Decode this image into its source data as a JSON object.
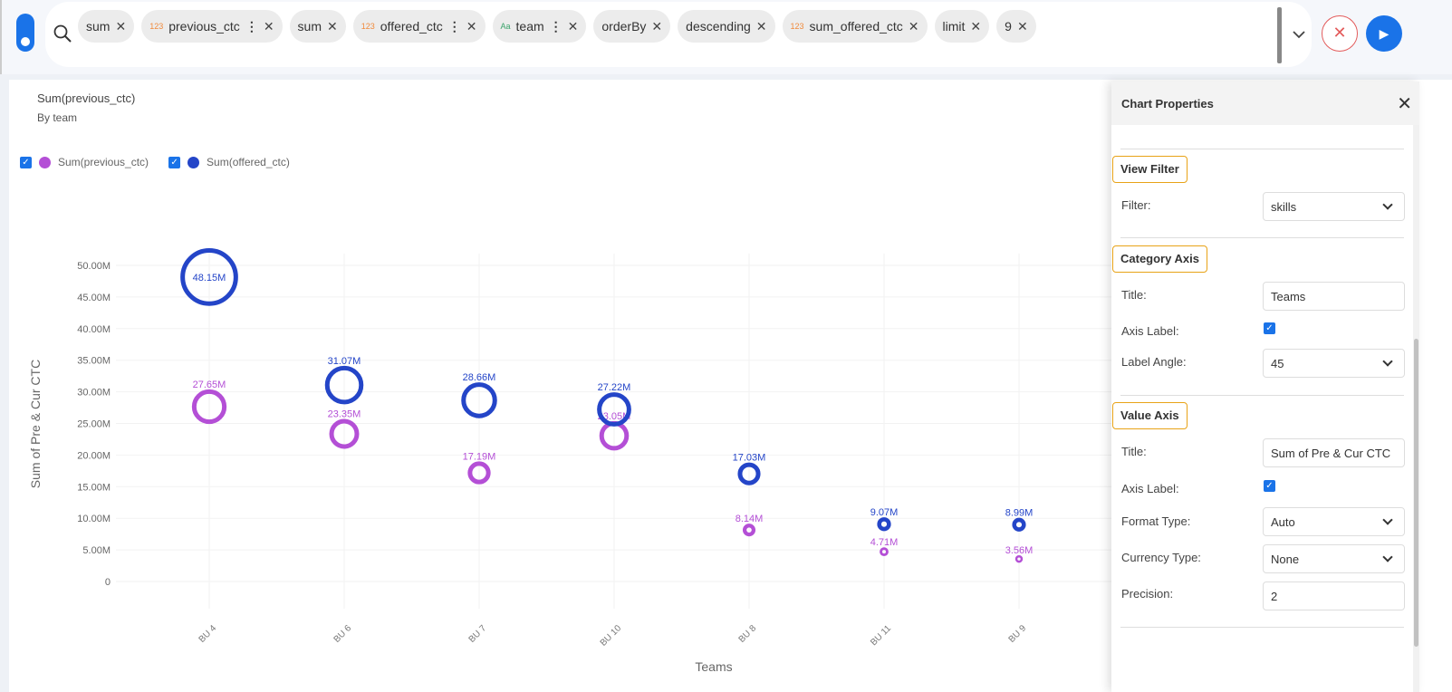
{
  "query": {
    "chips": [
      {
        "label": "sum"
      },
      {
        "type": "123",
        "label": "previous_ctc",
        "menu": true
      },
      {
        "label": "sum"
      },
      {
        "type": "123",
        "label": "offered_ctc",
        "menu": true
      },
      {
        "type": "Aa",
        "label": "team",
        "menu": true
      },
      {
        "label": "orderBy"
      },
      {
        "label": "descending"
      },
      {
        "type": "123",
        "label": "sum_offered_ctc"
      },
      {
        "label": "limit"
      },
      {
        "label": "9"
      }
    ]
  },
  "chart_data": {
    "type": "scatter",
    "title": "Sum(previous_ctc)",
    "subtitle": "By team",
    "xlabel": "Teams",
    "ylabel": "Sum of Pre & Cur CTC",
    "categories": [
      "BU 4",
      "BU 6",
      "BU 7",
      "BU 10",
      "BU 8",
      "BU 11",
      "BU 9"
    ],
    "yticks": [
      "0",
      "5.00M",
      "10.00M",
      "15.00M",
      "20.00M",
      "25.00M",
      "30.00M",
      "35.00M",
      "40.00M",
      "45.00M",
      "50.00M"
    ],
    "ylim": [
      0,
      50
    ],
    "grid": true,
    "series": [
      {
        "name": "Sum(previous_ctc)",
        "color": "#b44fd6",
        "values": [
          27.65,
          23.35,
          17.19,
          23.05,
          8.14,
          4.71,
          3.56
        ],
        "labels": [
          "27.65M",
          "23.35M",
          "17.19M",
          "23.05M",
          "8.14M",
          "4.71M",
          "3.56M"
        ]
      },
      {
        "name": "Sum(offered_ctc)",
        "color": "#2445c8",
        "values": [
          48.15,
          31.07,
          28.66,
          27.22,
          17.03,
          9.07,
          8.99
        ],
        "labels": [
          "48.15M",
          "31.07M",
          "28.66M",
          "27.22M",
          "17.03M",
          "9.07M",
          "8.99M"
        ]
      }
    ]
  },
  "panel": {
    "title": "Chart Properties",
    "view_filter": {
      "heading": "View Filter",
      "filter_label": "Filter:",
      "filter_value": "skills"
    },
    "category_axis": {
      "heading": "Category Axis",
      "title_label": "Title:",
      "title_value": "Teams",
      "axis_label": "Axis Label:",
      "angle_label": "Label Angle:",
      "angle_value": "45"
    },
    "value_axis": {
      "heading": "Value Axis",
      "title_label": "Title:",
      "title_value": "Sum of Pre & Cur CTC",
      "axis_label": "Axis Label:",
      "format_label": "Format Type:",
      "format_value": "Auto",
      "currency_label": "Currency Type:",
      "currency_value": "None",
      "precision_label": "Precision:",
      "precision_value": "2"
    }
  }
}
